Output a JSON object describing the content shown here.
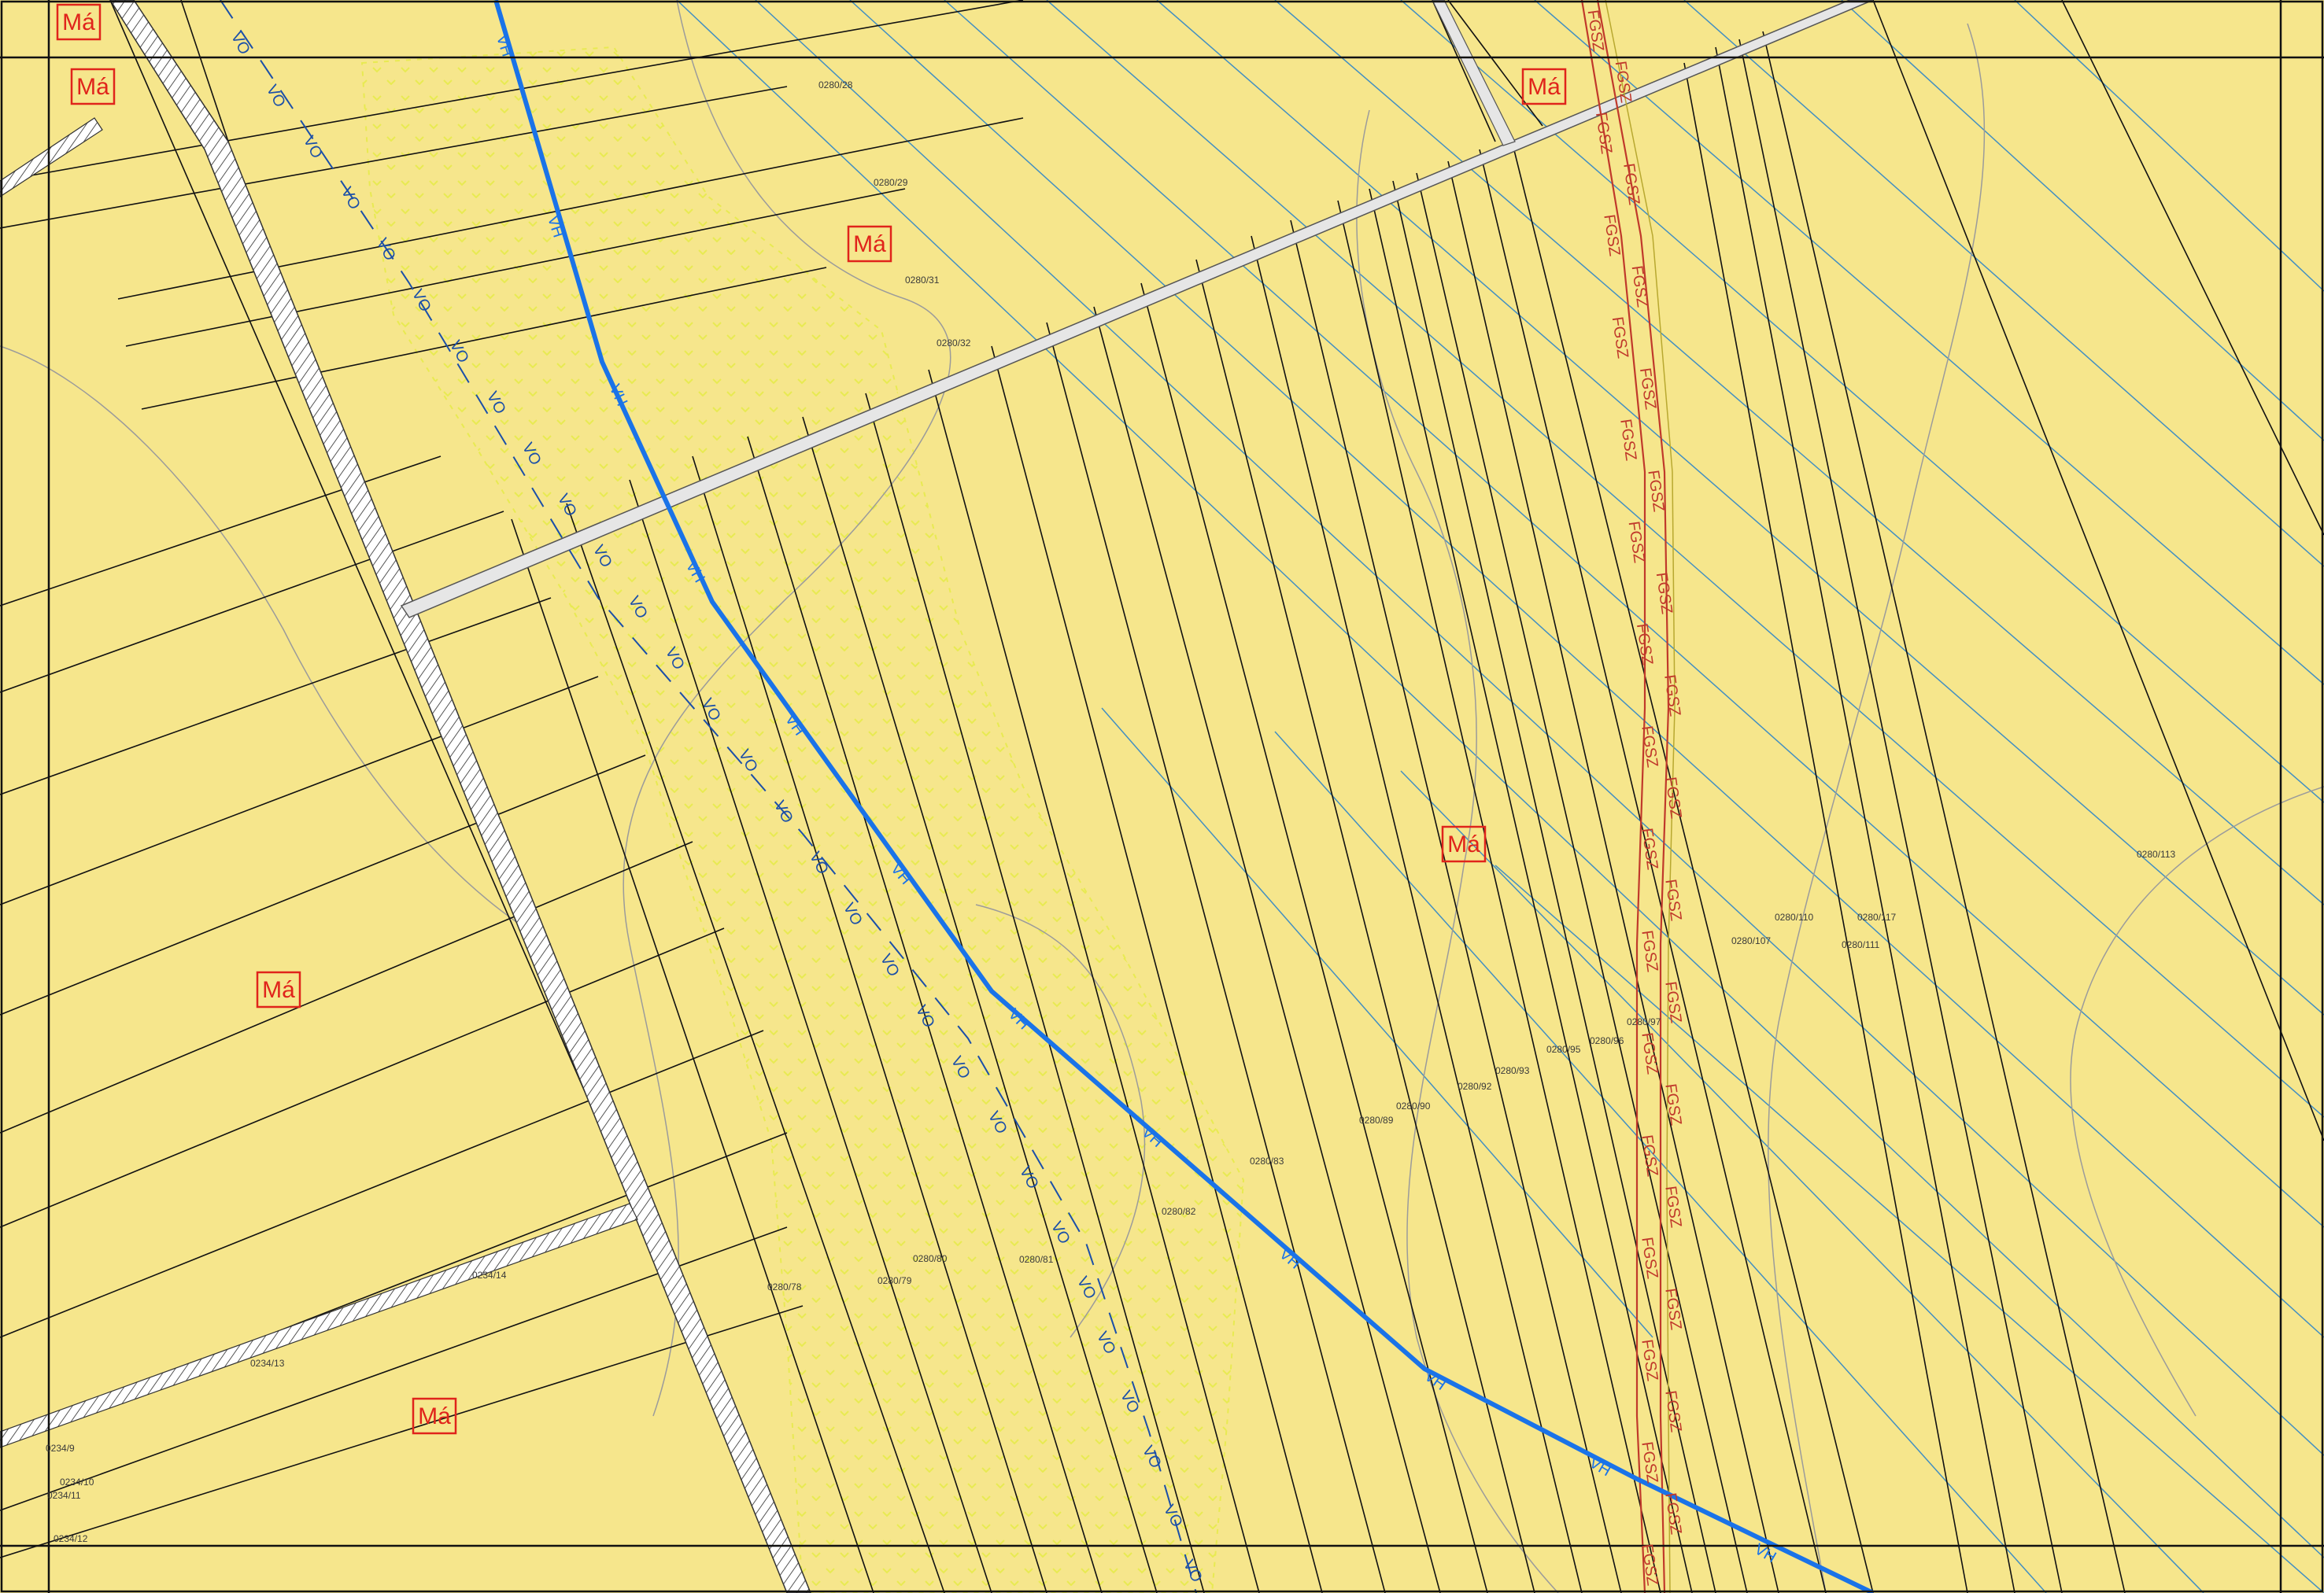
{
  "map": {
    "background_color": "#f6e68c",
    "colors": {
      "zone_label": "#e0241b",
      "water_line": "#1a73e8",
      "canal_line": "#1b4fa8",
      "gas_line": "#c0392b",
      "parcel_line": "#111111",
      "road": "#e6e6e6",
      "grid_line": "#2f86c8",
      "dotted_area": "#e8ea52"
    },
    "zone_labels": [
      "Má",
      "Má",
      "Má",
      "Má",
      "Má",
      "Má",
      "Má"
    ],
    "line_labels": {
      "water_main": "VH",
      "canal": "VO",
      "gas_pipeline": "FGSZ"
    },
    "parcel_labels": [
      "0280/28",
      "0280/29",
      "0280/31",
      "0280/32",
      "0280/78",
      "0280/79",
      "0280/80",
      "0280/81",
      "0280/82",
      "0280/83",
      "0280/89",
      "0280/90",
      "0280/92",
      "0280/93",
      "0280/95",
      "0280/96",
      "0280/97",
      "0280/107",
      "0280/110",
      "0280/111",
      "0280/113",
      "0280/117",
      "0234/9",
      "0234/10",
      "0234/11",
      "0234/12",
      "0234/13",
      "0234/14"
    ]
  }
}
